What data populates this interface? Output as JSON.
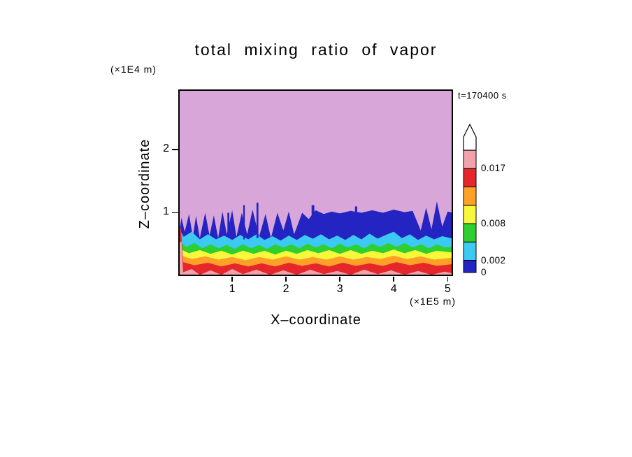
{
  "annotations": {
    "time_label": "t=170400 s",
    "y_axis_unit": "(×1E4 m)",
    "x_axis_unit": "(×1E5 m)"
  },
  "chart_data": {
    "type": "filled_contour",
    "title": "total mixing ratio of vapor",
    "xlabel": "X–coordinate",
    "ylabel": "Z–coordinate",
    "x_unit": "×1E5 m",
    "y_unit": "×1E4 m",
    "x_range": [
      0,
      5.1
    ],
    "y_range": [
      0,
      2.95
    ],
    "x_ticks": [
      1,
      2,
      3,
      4,
      5
    ],
    "y_ticks": [
      1,
      2
    ],
    "time_seconds": 170400,
    "levels": [
      0,
      0.002,
      0.005,
      0.008,
      0.011,
      0.014,
      0.017,
      0.02
    ],
    "background_color": "#d9a6d9",
    "bands": [
      {
        "name": "0-0.002",
        "range": [
          0,
          0.002
        ],
        "color": "#2424c3",
        "top_profile": [
          [
            0,
            0.6
          ],
          [
            0.06,
            0.92
          ],
          [
            0.12,
            0.7
          ],
          [
            0.2,
            0.98
          ],
          [
            0.27,
            0.62
          ],
          [
            0.33,
            0.95
          ],
          [
            0.4,
            0.6
          ],
          [
            0.5,
            1.0
          ],
          [
            0.58,
            0.64
          ],
          [
            0.66,
            0.96
          ],
          [
            0.74,
            0.6
          ],
          [
            0.82,
            1.02
          ],
          [
            0.9,
            0.66
          ],
          [
            1.0,
            1.04
          ],
          [
            1.08,
            0.62
          ],
          [
            1.18,
            1.0
          ],
          [
            1.28,
            0.66
          ],
          [
            1.38,
            1.05
          ],
          [
            1.5,
            0.62
          ],
          [
            1.62,
            0.98
          ],
          [
            1.72,
            0.6
          ],
          [
            1.84,
            1.0
          ],
          [
            1.95,
            0.72
          ],
          [
            2.05,
            1.02
          ],
          [
            2.15,
            0.66
          ],
          [
            2.3,
            1.0
          ],
          [
            2.42,
            0.9
          ],
          [
            2.55,
            1.04
          ],
          [
            2.7,
            0.98
          ],
          [
            2.85,
            1.02
          ],
          [
            3.0,
            0.99
          ],
          [
            3.2,
            1.03
          ],
          [
            3.4,
            1.0
          ],
          [
            3.6,
            1.04
          ],
          [
            3.8,
            1.0
          ],
          [
            4.0,
            1.05
          ],
          [
            4.2,
            1.01
          ],
          [
            4.35,
            1.03
          ],
          [
            4.5,
            0.72
          ],
          [
            4.6,
            1.08
          ],
          [
            4.7,
            0.74
          ],
          [
            4.8,
            1.18
          ],
          [
            4.9,
            0.78
          ],
          [
            5.0,
            1.02
          ],
          [
            5.1,
            1.0
          ]
        ]
      },
      {
        "name": "0.002-0.005",
        "range": [
          0.002,
          0.005
        ],
        "color": "#3cc9f2",
        "top_profile": [
          [
            0,
            0.78
          ],
          [
            0.1,
            0.62
          ],
          [
            0.25,
            0.7
          ],
          [
            0.4,
            0.58
          ],
          [
            0.55,
            0.66
          ],
          [
            0.7,
            0.58
          ],
          [
            0.85,
            0.64
          ],
          [
            1.0,
            0.57
          ],
          [
            1.15,
            0.65
          ],
          [
            1.3,
            0.58
          ],
          [
            1.45,
            0.66
          ],
          [
            1.6,
            0.57
          ],
          [
            1.75,
            0.63
          ],
          [
            1.9,
            0.56
          ],
          [
            2.05,
            0.64
          ],
          [
            2.2,
            0.57
          ],
          [
            2.35,
            0.65
          ],
          [
            2.5,
            0.59
          ],
          [
            2.65,
            0.66
          ],
          [
            2.8,
            0.58
          ],
          [
            2.95,
            0.64
          ],
          [
            3.1,
            0.57
          ],
          [
            3.25,
            0.65
          ],
          [
            3.4,
            0.58
          ],
          [
            3.55,
            0.67
          ],
          [
            3.7,
            0.59
          ],
          [
            3.85,
            0.65
          ],
          [
            4.0,
            0.7
          ],
          [
            4.15,
            0.6
          ],
          [
            4.3,
            0.66
          ],
          [
            4.45,
            0.57
          ],
          [
            4.6,
            0.64
          ],
          [
            4.75,
            0.58
          ],
          [
            4.9,
            0.63
          ],
          [
            5.1,
            0.59
          ]
        ]
      },
      {
        "name": "0.005-0.008",
        "range": [
          0.005,
          0.008
        ],
        "color": "#2ecf2e",
        "top_profile": [
          [
            0,
            0.56
          ],
          [
            0.15,
            0.46
          ],
          [
            0.3,
            0.52
          ],
          [
            0.45,
            0.44
          ],
          [
            0.6,
            0.5
          ],
          [
            0.75,
            0.44
          ],
          [
            0.9,
            0.49
          ],
          [
            1.05,
            0.43
          ],
          [
            1.2,
            0.5
          ],
          [
            1.35,
            0.44
          ],
          [
            1.5,
            0.49
          ],
          [
            1.65,
            0.43
          ],
          [
            1.8,
            0.5
          ],
          [
            1.95,
            0.45
          ],
          [
            2.1,
            0.5
          ],
          [
            2.25,
            0.44
          ],
          [
            2.4,
            0.51
          ],
          [
            2.55,
            0.45
          ],
          [
            2.7,
            0.5
          ],
          [
            2.85,
            0.44
          ],
          [
            3.0,
            0.51
          ],
          [
            3.15,
            0.45
          ],
          [
            3.3,
            0.5
          ],
          [
            3.45,
            0.44
          ],
          [
            3.6,
            0.51
          ],
          [
            3.75,
            0.46
          ],
          [
            3.9,
            0.52
          ],
          [
            4.05,
            0.46
          ],
          [
            4.2,
            0.52
          ],
          [
            4.35,
            0.45
          ],
          [
            4.5,
            0.5
          ],
          [
            4.65,
            0.44
          ],
          [
            4.8,
            0.5
          ],
          [
            4.95,
            0.45
          ],
          [
            5.1,
            0.47
          ]
        ]
      },
      {
        "name": "0.008-0.011",
        "range": [
          0.008,
          0.011
        ],
        "color": "#f7f73b",
        "top_profile": [
          [
            0,
            0.44
          ],
          [
            0.2,
            0.36
          ],
          [
            0.4,
            0.41
          ],
          [
            0.6,
            0.35
          ],
          [
            0.8,
            0.4
          ],
          [
            1.0,
            0.34
          ],
          [
            1.2,
            0.4
          ],
          [
            1.4,
            0.35
          ],
          [
            1.6,
            0.4
          ],
          [
            1.8,
            0.34
          ],
          [
            2.0,
            0.4
          ],
          [
            2.2,
            0.35
          ],
          [
            2.4,
            0.41
          ],
          [
            2.6,
            0.36
          ],
          [
            2.8,
            0.41
          ],
          [
            3.0,
            0.35
          ],
          [
            3.2,
            0.41
          ],
          [
            3.4,
            0.35
          ],
          [
            3.6,
            0.4
          ],
          [
            3.8,
            0.36
          ],
          [
            4.0,
            0.42
          ],
          [
            4.2,
            0.36
          ],
          [
            4.4,
            0.41
          ],
          [
            4.6,
            0.35
          ],
          [
            4.8,
            0.4
          ],
          [
            5.1,
            0.37
          ]
        ]
      },
      {
        "name": "0.011-0.014",
        "range": [
          0.011,
          0.014
        ],
        "color": "#ffa028",
        "top_profile": [
          [
            0,
            0.34
          ],
          [
            0.25,
            0.27
          ],
          [
            0.5,
            0.31
          ],
          [
            0.75,
            0.26
          ],
          [
            1.0,
            0.3
          ],
          [
            1.25,
            0.25
          ],
          [
            1.5,
            0.3
          ],
          [
            1.75,
            0.26
          ],
          [
            2.0,
            0.31
          ],
          [
            2.25,
            0.26
          ],
          [
            2.5,
            0.3
          ],
          [
            2.75,
            0.26
          ],
          [
            3.0,
            0.31
          ],
          [
            3.25,
            0.26
          ],
          [
            3.5,
            0.3
          ],
          [
            3.75,
            0.27
          ],
          [
            4.0,
            0.32
          ],
          [
            4.25,
            0.27
          ],
          [
            4.5,
            0.31
          ],
          [
            4.75,
            0.26
          ],
          [
            5.1,
            0.29
          ]
        ]
      },
      {
        "name": "0.014-0.017",
        "range": [
          0.014,
          0.017
        ],
        "color": "#e5262b",
        "top_profile": [
          [
            0,
            0.74
          ],
          [
            0.05,
            0.76
          ],
          [
            0.09,
            0.22
          ],
          [
            0.3,
            0.17
          ],
          [
            0.55,
            0.21
          ],
          [
            0.8,
            0.15
          ],
          [
            1.05,
            0.2
          ],
          [
            1.3,
            0.15
          ],
          [
            1.55,
            0.2
          ],
          [
            1.8,
            0.15
          ],
          [
            2.05,
            0.21
          ],
          [
            2.3,
            0.16
          ],
          [
            2.55,
            0.2
          ],
          [
            2.8,
            0.15
          ],
          [
            3.05,
            0.21
          ],
          [
            3.3,
            0.16
          ],
          [
            3.55,
            0.2
          ],
          [
            3.8,
            0.16
          ],
          [
            4.05,
            0.22
          ],
          [
            4.3,
            0.17
          ],
          [
            4.55,
            0.21
          ],
          [
            4.8,
            0.16
          ],
          [
            5.1,
            0.19
          ]
        ]
      },
      {
        "name": "0.017-0.02",
        "range": [
          0.017,
          0.02
        ],
        "color": "#f1a2aa",
        "top_profile": [
          [
            0,
            0.05
          ],
          [
            0.02,
            0.52
          ],
          [
            0.06,
            0.55
          ],
          [
            0.09,
            0.06
          ],
          [
            0.25,
            0.11
          ],
          [
            0.4,
            0.02
          ],
          [
            0.6,
            0.09
          ],
          [
            0.8,
            0.02
          ],
          [
            1.0,
            0.11
          ],
          [
            1.2,
            0.03
          ],
          [
            1.45,
            0.1
          ],
          [
            1.7,
            0.02
          ],
          [
            1.95,
            0.09
          ],
          [
            2.2,
            0.02
          ],
          [
            2.45,
            0.1
          ],
          [
            2.7,
            0.03
          ],
          [
            2.95,
            0.08
          ],
          [
            3.2,
            0.02
          ],
          [
            3.45,
            0.1
          ],
          [
            3.7,
            0.03
          ],
          [
            3.95,
            0.09
          ],
          [
            4.2,
            0.02
          ],
          [
            4.45,
            0.08
          ],
          [
            4.7,
            0.02
          ],
          [
            4.95,
            0.07
          ],
          [
            5.1,
            0.04
          ]
        ]
      }
    ],
    "streaks": [
      {
        "x": 0.93,
        "w": 0.035,
        "z1": 0.62,
        "z2": 1.0,
        "color": "#2424c3"
      },
      {
        "x": 1.22,
        "w": 0.03,
        "z1": 0.58,
        "z2": 1.12,
        "color": "#2424c3"
      },
      {
        "x": 1.47,
        "w": 0.035,
        "z1": 0.6,
        "z2": 1.16,
        "color": "#2424c3"
      },
      {
        "x": 2.5,
        "w": 0.05,
        "z1": 0.88,
        "z2": 1.12,
        "color": "#2424c3"
      },
      {
        "x": 3.3,
        "w": 0.04,
        "z1": 0.95,
        "z2": 1.1,
        "color": "#2424c3"
      }
    ],
    "colorbar": {
      "value_min": 0,
      "value_max": 0.02,
      "arrow_color": "#ffffff",
      "segments": [
        {
          "from": 0,
          "to": 0.002,
          "color": "#2424c3"
        },
        {
          "from": 0.002,
          "to": 0.005,
          "color": "#3cc9f2"
        },
        {
          "from": 0.005,
          "to": 0.008,
          "color": "#2ecf2e"
        },
        {
          "from": 0.008,
          "to": 0.011,
          "color": "#f7f73b"
        },
        {
          "from": 0.011,
          "to": 0.014,
          "color": "#ffa028"
        },
        {
          "from": 0.014,
          "to": 0.017,
          "color": "#e5262b"
        },
        {
          "from": 0.017,
          "to": 0.02,
          "color": "#f1a2aa"
        }
      ],
      "labels": [
        {
          "text": "0.017",
          "value": 0.017
        },
        {
          "text": "0.008",
          "value": 0.008
        },
        {
          "text": "0.002",
          "value": 0.002
        },
        {
          "text": "0",
          "value": 0
        }
      ]
    }
  }
}
